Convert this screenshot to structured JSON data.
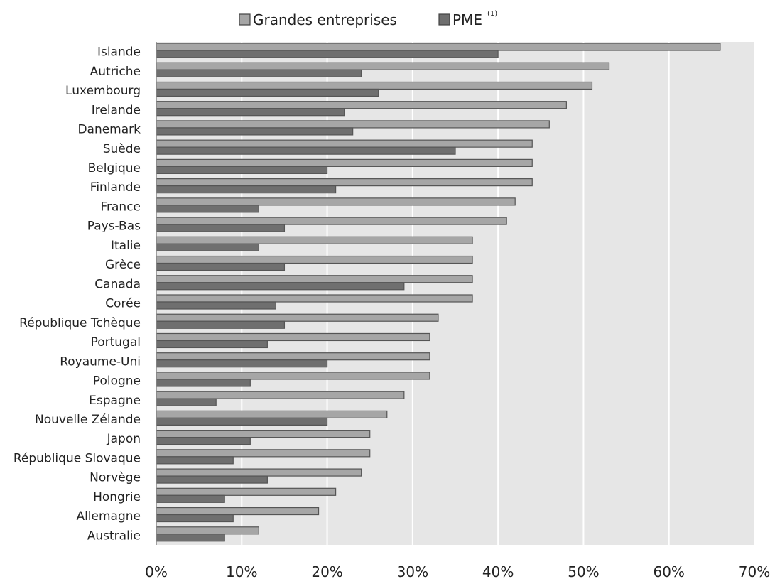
{
  "chart_data": {
    "type": "bar",
    "orientation": "horizontal",
    "categories": [
      "Islande",
      "Autriche",
      "Luxembourg",
      "Irelande",
      "Danemark",
      "Suède",
      "Belgique",
      "Finlande",
      "France",
      "Pays-Bas",
      "Italie",
      "Grèce",
      "Canada",
      "Corée",
      "République Tchèque",
      "Portugal",
      "Royaume-Uni",
      "Pologne",
      "Espagne",
      "Nouvelle Zélande",
      "Japon",
      "République Slovaque",
      "Norvège",
      "Hongrie",
      "Allemagne",
      "Australie"
    ],
    "series": [
      {
        "name": "Grandes entreprises",
        "color": "#a6a6a6",
        "values": [
          66,
          53,
          51,
          48,
          46,
          44,
          44,
          44,
          42,
          41,
          37,
          37,
          37,
          37,
          33,
          32,
          32,
          32,
          29,
          27,
          25,
          25,
          24,
          21,
          19,
          12
        ]
      },
      {
        "name": "PME",
        "name_superscript": "(1)",
        "color": "#6f6f6f",
        "values": [
          40,
          24,
          26,
          22,
          23,
          35,
          20,
          21,
          12,
          15,
          12,
          15,
          29,
          14,
          15,
          13,
          20,
          11,
          7,
          20,
          11,
          9,
          13,
          8,
          9,
          8
        ]
      }
    ],
    "xlim": [
      0,
      70
    ],
    "xticks": [
      "0%",
      "10%",
      "20%",
      "30%",
      "40%",
      "50%",
      "60%",
      "70%"
    ],
    "grid": true,
    "legend_position": "top-center",
    "plot_background": "#e6e6e6",
    "bar_stroke": "#555555"
  }
}
